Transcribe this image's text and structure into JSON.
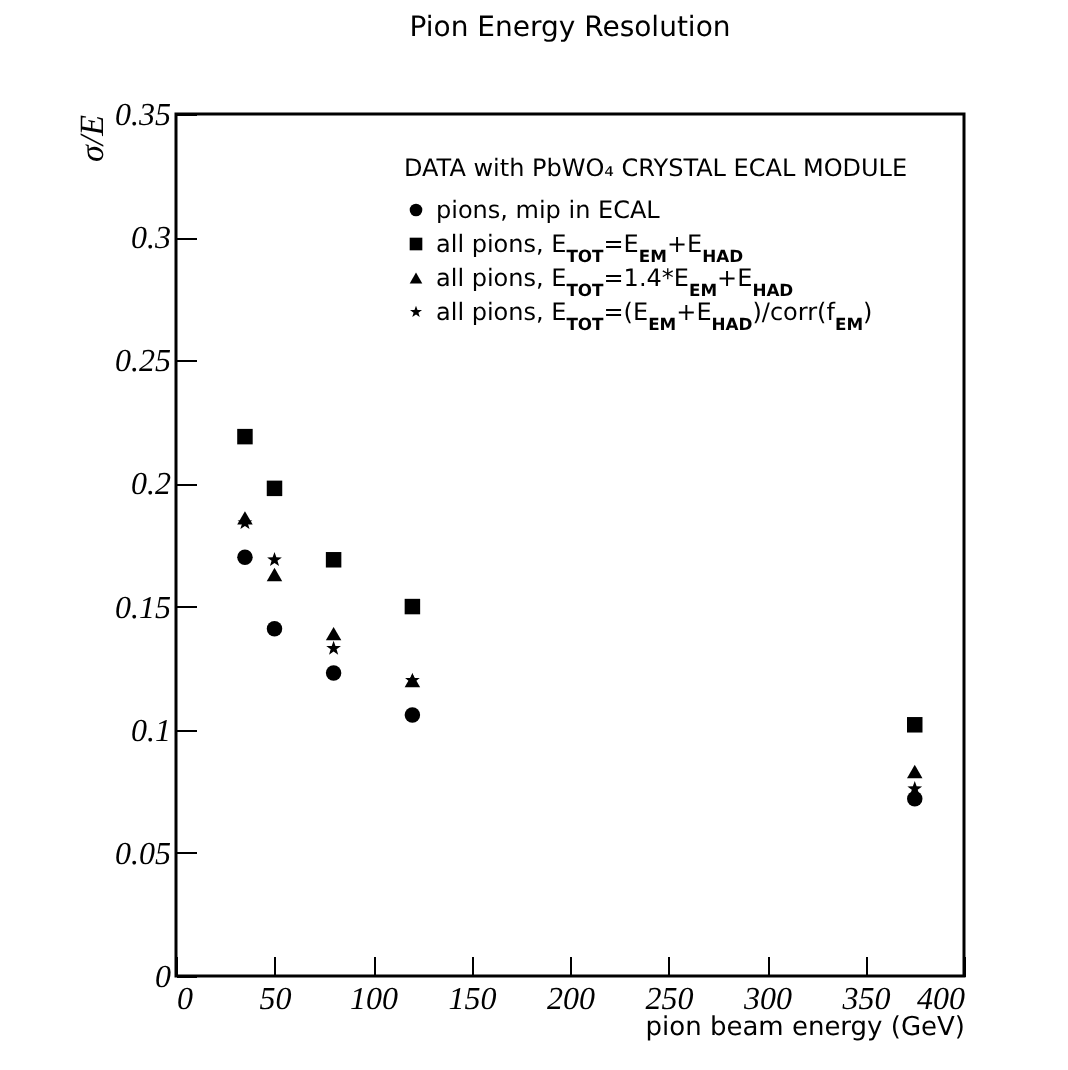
{
  "chart_data": {
    "type": "scatter",
    "title": "Pion Energy Resolution",
    "xlabel": "pion beam energy (GeV)",
    "ylabel": "σ/E",
    "legend_title": "DATA with PbWO₄ CRYSTAL ECAL MODULE",
    "legend": "top right",
    "x": [
      35,
      50,
      80,
      120,
      375
    ],
    "series": [
      {
        "name": "pions, mip in ECAL",
        "color": "#000000",
        "marker": "circle",
        "values": [
          0.17,
          0.141,
          0.123,
          0.106,
          0.072
        ]
      },
      {
        "name": "all pions, E$_{TOT}$=E$_{EM}$+E$_{HAD}$",
        "color": "#000000",
        "marker": "square",
        "values": [
          0.219,
          0.198,
          0.169,
          0.15,
          0.102
        ]
      },
      {
        "name": "all pions, E$_{TOT}$=1.4*E$_{EM}$+E$_{HAD}$",
        "color": "#000000",
        "marker": "triangle",
        "values": [
          0.186,
          0.163,
          0.139,
          0.12,
          0.083
        ]
      },
      {
        "name": "all pions, E$_{TOT}$=(E$_{EM}$+E$_{HAD}$)/corr(f$_{EM}$)",
        "color": "#000000",
        "marker": "star",
        "values": [
          0.184,
          0.169,
          0.133,
          0.12,
          0.076
        ]
      }
    ],
    "xlim": [
      0,
      400
    ],
    "xticks": [
      0,
      50,
      100,
      150,
      200,
      250,
      300,
      350,
      400
    ],
    "ylim": [
      0,
      0.35
    ],
    "yticks": [
      0,
      0.05,
      0.1,
      0.15,
      0.2,
      0.25,
      0.3,
      0.35
    ],
    "grid": false
  }
}
